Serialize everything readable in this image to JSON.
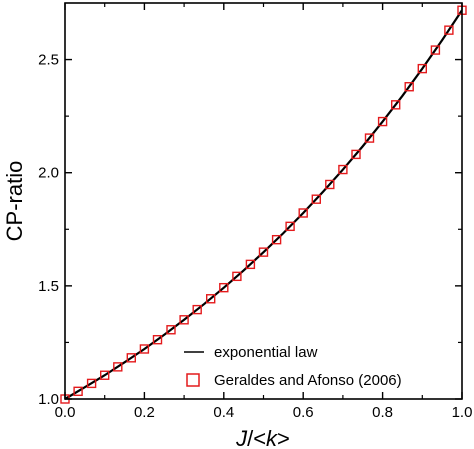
{
  "chart_data": {
    "type": "line",
    "xlabel_parts": [
      "J",
      "/<",
      "k",
      ">"
    ],
    "ylabel": "CP-ratio",
    "xlim": [
      0.0,
      1.0
    ],
    "ylim": [
      1.0,
      2.75
    ],
    "x_ticks": [
      "0.0",
      "0.2",
      "0.4",
      "0.6",
      "0.8",
      "1.0"
    ],
    "y_ticks": [
      "1.0",
      "1.5",
      "2.0",
      "2.5"
    ],
    "legend_placement": "bottom-right",
    "series": [
      {
        "name": "exponential law",
        "style": "line",
        "color": "#000000",
        "x": [
          0.0,
          0.05,
          0.1,
          0.15,
          0.2,
          0.25,
          0.3,
          0.35,
          0.4,
          0.45,
          0.5,
          0.55,
          0.6,
          0.65,
          0.7,
          0.75,
          0.8,
          0.85,
          0.9,
          0.95,
          1.0
        ],
        "y": [
          1.0,
          1.052,
          1.105,
          1.162,
          1.221,
          1.284,
          1.35,
          1.419,
          1.492,
          1.568,
          1.649,
          1.733,
          1.822,
          1.916,
          2.014,
          2.117,
          2.226,
          2.34,
          2.46,
          2.586,
          2.718
        ]
      },
      {
        "name": "Geraldes and Afonso (2006)",
        "style": "open-square",
        "color": "#e41a1c",
        "x": [
          0.0,
          0.033,
          0.067,
          0.1,
          0.133,
          0.167,
          0.2,
          0.233,
          0.267,
          0.3,
          0.333,
          0.367,
          0.4,
          0.433,
          0.467,
          0.5,
          0.533,
          0.567,
          0.6,
          0.633,
          0.667,
          0.7,
          0.733,
          0.767,
          0.8,
          0.833,
          0.867,
          0.9,
          0.933,
          0.967,
          1.0
        ],
        "y": [
          1.0,
          1.034,
          1.069,
          1.105,
          1.142,
          1.182,
          1.221,
          1.262,
          1.306,
          1.35,
          1.395,
          1.443,
          1.492,
          1.542,
          1.595,
          1.649,
          1.704,
          1.763,
          1.822,
          1.883,
          1.948,
          2.014,
          2.081,
          2.153,
          2.226,
          2.3,
          2.38,
          2.46,
          2.542,
          2.63,
          2.718
        ]
      }
    ]
  }
}
